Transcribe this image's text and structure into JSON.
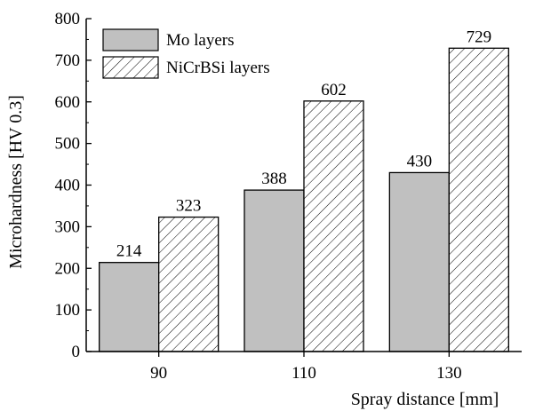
{
  "chart_data": {
    "type": "bar",
    "xlabel": "Spray distance [mm]",
    "ylabel": "Microhardness [HV 0.3]",
    "categories": [
      "90",
      "110",
      "130"
    ],
    "ylim": [
      0,
      800
    ],
    "yticks": [
      0,
      100,
      200,
      300,
      400,
      500,
      600,
      700,
      800
    ],
    "series": [
      {
        "name": "Mo layers",
        "values": [
          214,
          388,
          430
        ],
        "fill": "#c0c0c0",
        "pattern": "solid"
      },
      {
        "name": "NiCrBSi layers",
        "values": [
          323,
          602,
          729
        ],
        "fill": "#ffffff",
        "pattern": "hatch"
      }
    ],
    "data_labels": true,
    "legend_position": "top-left",
    "grid": false
  }
}
